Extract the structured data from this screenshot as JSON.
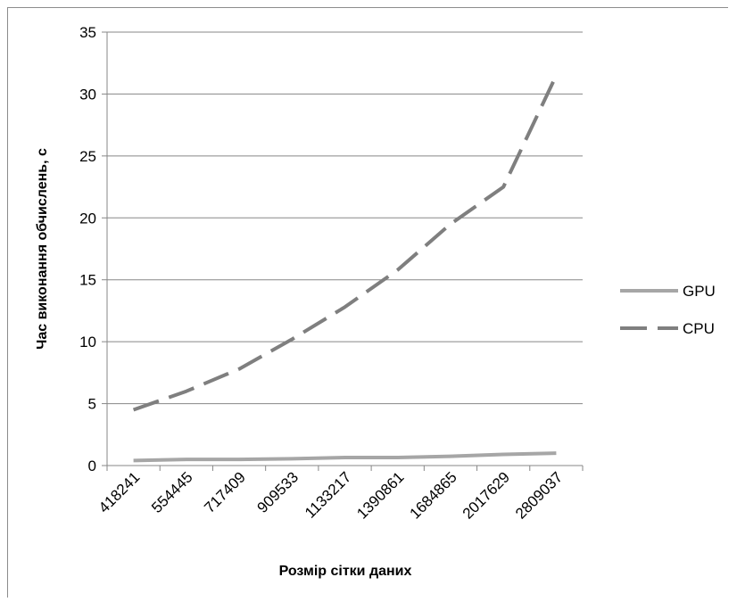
{
  "chart_data": {
    "type": "line",
    "title": "",
    "xlabel": "Розмір сітки даних",
    "ylabel": "Час виконання обчислень, с",
    "categories": [
      "418241",
      "554445",
      "717409",
      "909533",
      "1133217",
      "1390861",
      "1684865",
      "2017629",
      "2809037"
    ],
    "ylim": [
      0,
      35
    ],
    "yticks": [
      "0",
      "5",
      "10",
      "15",
      "20",
      "25",
      "30",
      "35"
    ],
    "grid": true,
    "legend_position": "right",
    "series": [
      {
        "name": "GPU",
        "color": "#a6a6a6",
        "dash": "solid",
        "values": [
          0.4,
          0.5,
          0.5,
          0.55,
          0.65,
          0.65,
          0.75,
          0.9,
          1.0
        ]
      },
      {
        "name": "CPU",
        "color": "#7f7f7f",
        "dash": "dashed",
        "values": [
          4.5,
          6.0,
          7.8,
          10.2,
          12.8,
          15.8,
          19.5,
          22.5,
          31.5
        ]
      }
    ]
  }
}
